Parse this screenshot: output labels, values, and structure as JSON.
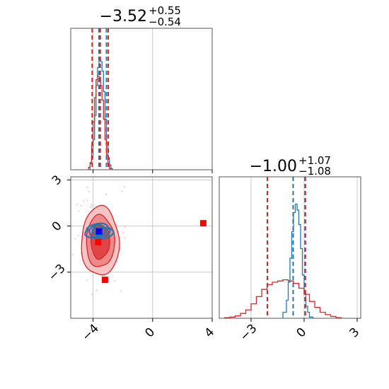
{
  "chart_data": [
    {
      "type": "histogram",
      "panel": "top-left",
      "title": {
        "median": "−3.52",
        "plus": "+0.55",
        "minus": "−0.54"
      },
      "xlim": [
        -5.5,
        4
      ],
      "x_ticks": [
        -4,
        0,
        4
      ],
      "grid": true,
      "series": [
        {
          "color": "#1f77b4",
          "bin_edges": [
            -4.2,
            -4.1,
            -4.0,
            -3.9,
            -3.8,
            -3.7,
            -3.6,
            -3.5,
            -3.4,
            -3.3,
            -3.2,
            -3.1,
            -3.0,
            -2.9,
            -2.8,
            -2.7
          ],
          "counts": [
            0.05,
            0.1,
            0.25,
            0.45,
            0.7,
            0.85,
            0.92,
            0.9,
            0.82,
            0.65,
            0.42,
            0.22,
            0.1,
            0.04,
            0.01
          ],
          "quantile_lines": [
            -3.6,
            -3.1
          ]
        },
        {
          "color": "#d62728",
          "bin_edges": [
            -4.3,
            -4.2,
            -4.1,
            -4.0,
            -3.9,
            -3.8,
            -3.7,
            -3.6,
            -3.5,
            -3.4,
            -3.3,
            -3.2,
            -3.1,
            -3.0,
            -2.9,
            -2.8
          ],
          "counts": [
            0.02,
            0.06,
            0.2,
            0.4,
            0.6,
            0.75,
            0.78,
            0.77,
            0.7,
            0.58,
            0.42,
            0.25,
            0.12,
            0.05,
            0.01
          ],
          "quantile_lines": [
            -4.06,
            -3.52,
            -2.98
          ]
        }
      ]
    },
    {
      "type": "contour",
      "panel": "bottom-left",
      "xlim": [
        -5.5,
        4
      ],
      "ylim": [
        -6,
        3.2
      ],
      "x_ticks": [
        -4,
        0,
        4
      ],
      "y_ticks": [
        -3,
        0,
        3
      ],
      "grid": true,
      "series": [
        {
          "color": "#d62728",
          "center": [
            -3.52,
            -1.0
          ],
          "sigma": [
            0.55,
            1.07
          ],
          "levels": [
            1,
            1.5,
            2
          ]
        },
        {
          "color": "#1f77b4",
          "center": [
            -3.6,
            -0.35
          ],
          "sigma": [
            0.42,
            0.22
          ],
          "levels": [
            1,
            1.5,
            2
          ]
        }
      ],
      "markers": [
        {
          "x": 3.4,
          "y": 0.18,
          "color": "#ff0000"
        },
        {
          "x": -3.2,
          "y": -3.5,
          "color": "#ff0000"
        },
        {
          "x": -3.65,
          "y": -1.05,
          "color": "#ff0000"
        },
        {
          "x": -3.6,
          "y": -0.35,
          "color": "#0000ff"
        }
      ]
    },
    {
      "type": "histogram",
      "panel": "bottom-right",
      "title": {
        "median": "−1.00",
        "plus": "+1.07",
        "minus": "−1.08"
      },
      "xlim": [
        -4.8,
        3.2
      ],
      "x_ticks": [
        -3,
        0,
        3
      ],
      "grid": true,
      "series": [
        {
          "color": "#1f77b4",
          "bin_edges": [
            -1.2,
            -1.0,
            -0.9,
            -0.8,
            -0.7,
            -0.6,
            -0.5,
            -0.4,
            -0.3,
            -0.2,
            -0.1,
            0.0,
            0.1,
            0.2,
            0.3,
            0.5
          ],
          "counts": [
            0.05,
            0.15,
            0.3,
            0.5,
            0.72,
            0.88,
            0.95,
            0.9,
            0.78,
            0.58,
            0.36,
            0.2,
            0.1,
            0.05,
            0.01
          ],
          "quantile_lines": [
            -0.62,
            0.05
          ]
        },
        {
          "color": "#d62728",
          "bin_edges": [
            -4.5,
            -4.2,
            -3.9,
            -3.6,
            -3.3,
            -3.0,
            -2.7,
            -2.4,
            -2.1,
            -1.8,
            -1.5,
            -1.2,
            -0.9,
            -0.6,
            -0.3,
            0.0,
            0.3,
            0.6,
            0.9,
            1.2,
            1.5,
            1.8,
            2.1
          ],
          "counts": [
            0.005,
            0.01,
            0.02,
            0.04,
            0.07,
            0.12,
            0.18,
            0.24,
            0.28,
            0.3,
            0.31,
            0.32,
            0.31,
            0.29,
            0.25,
            0.2,
            0.14,
            0.09,
            0.05,
            0.03,
            0.015,
            0.005
          ],
          "quantile_lines": [
            -2.08,
            0.07
          ]
        }
      ]
    }
  ]
}
